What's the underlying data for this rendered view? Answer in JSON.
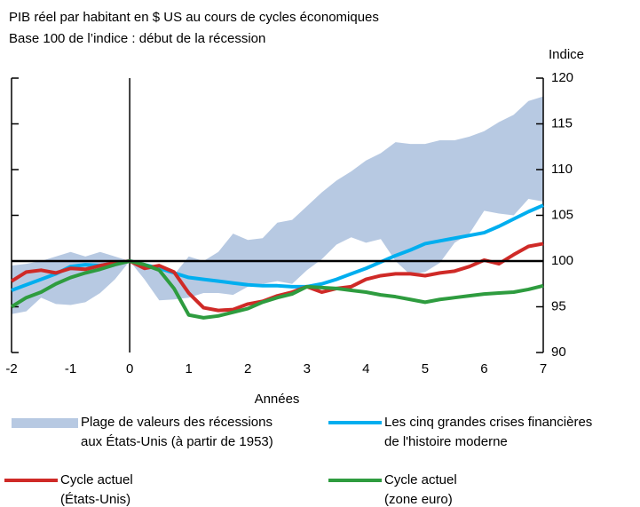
{
  "chart_data": {
    "type": "line",
    "title": "PIB réel par habitant en $ US au cours de cycles économiques",
    "subtitle": "Base 100 de l’indice : début de la récession",
    "y_label": "Indice",
    "x_label": "Années",
    "x": [
      -2,
      -1.75,
      -1.5,
      -1.25,
      -1,
      -0.75,
      -0.5,
      -0.25,
      0,
      0.25,
      0.5,
      0.75,
      1,
      1.25,
      1.5,
      1.75,
      2,
      2.25,
      2.5,
      2.75,
      3,
      3.25,
      3.5,
      3.75,
      4,
      4.25,
      4.5,
      4.75,
      5,
      5.25,
      5.5,
      5.75,
      6,
      6.25,
      6.5,
      6.75,
      7
    ],
    "xlim": [
      -2,
      7
    ],
    "xticks": [
      -2,
      -1,
      0,
      1,
      2,
      3,
      4,
      5,
      6,
      7
    ],
    "ylim": [
      90,
      120
    ],
    "yticks": [
      90,
      95,
      100,
      105,
      110,
      115,
      120
    ],
    "hlines": [
      100
    ],
    "vlines": [
      0
    ],
    "band": {
      "name": "Plage de valeurs des récessions\naux États-Unis (à partir de 1953)",
      "color": "#b7c9e2",
      "upper": [
        99.5,
        99.7,
        100,
        100.5,
        101,
        100.5,
        101,
        100.5,
        100,
        99.5,
        99,
        98.5,
        100.5,
        100,
        101,
        103,
        102.3,
        102.5,
        104.2,
        104.5,
        106,
        107.5,
        108.8,
        109.8,
        111,
        111.8,
        113,
        112.8,
        112.8,
        113.2,
        113.2,
        113.6,
        114.2,
        115.2,
        116,
        117.5,
        118
      ],
      "lower": [
        94.2,
        94.5,
        96,
        95.3,
        95.2,
        95.5,
        96.5,
        98,
        100,
        98,
        95.7,
        95.8,
        96,
        96.5,
        96.5,
        96.3,
        97.2,
        97.5,
        97.8,
        97.5,
        99,
        100.2,
        101.8,
        102.6,
        102,
        102.4,
        100,
        98.5,
        98.8,
        99.8,
        102,
        103,
        105.5,
        105.2,
        105,
        106.8,
        106.5
      ]
    },
    "series": [
      {
        "name": "Les cinq grandes crises financières\nde l'histoire moderne",
        "color": "#00aeef",
        "values": [
          96.8,
          97.4,
          98,
          98.6,
          99.4,
          99.6,
          99.5,
          99.8,
          100,
          99.6,
          99.2,
          98.7,
          98.2,
          98,
          97.8,
          97.6,
          97.4,
          97.3,
          97.3,
          97.2,
          97.2,
          97.5,
          98,
          98.6,
          99.2,
          99.9,
          100.6,
          101.2,
          101.9,
          102.2,
          102.5,
          102.8,
          103.1,
          103.8,
          104.6,
          105.4,
          106.1
        ]
      },
      {
        "name": "Cycle actuel\n(États-Unis)",
        "color": "#cf2a27",
        "values": [
          97.8,
          98.8,
          99,
          98.7,
          99.2,
          99.1,
          99.5,
          99.8,
          100,
          99.2,
          99.5,
          98.8,
          96.5,
          94.9,
          94.6,
          94.7,
          95.3,
          95.6,
          96.2,
          96.6,
          97.2,
          96.6,
          97,
          97.2,
          98,
          98.4,
          98.6,
          98.6,
          98.4,
          98.7,
          98.9,
          99.4,
          100.1,
          99.7,
          100.7,
          101.6,
          101.9
        ]
      },
      {
        "name": "Cycle actuel\n(zone euro)",
        "color": "#2e9c3f",
        "values": [
          95,
          96,
          96.6,
          97.5,
          98.2,
          98.7,
          99.1,
          99.6,
          100,
          99.6,
          99,
          97,
          94.1,
          93.8,
          94,
          94.4,
          94.8,
          95.5,
          96,
          96.4,
          97.2,
          97.1,
          97,
          96.8,
          96.6,
          96.3,
          96.1,
          95.8,
          95.5,
          95.8,
          96,
          96.2,
          96.4,
          96.5,
          96.6,
          96.9,
          97.3
        ]
      }
    ]
  }
}
